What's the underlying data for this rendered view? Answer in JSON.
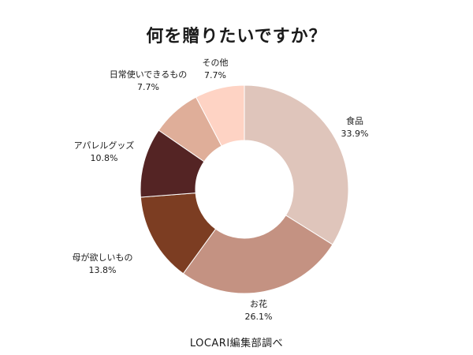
{
  "chart_data": {
    "type": "pie",
    "title": "何を贈りたいですか？",
    "source": "LOCARI編集部調べ",
    "slices": [
      {
        "label": "食品",
        "value": 33.9,
        "display": "33.9%",
        "color": "#dfc5bb"
      },
      {
        "label": "お花",
        "value": 26.1,
        "display": "26.1%",
        "color": "#c49282"
      },
      {
        "label": "母が欲しいもの",
        "value": 13.8,
        "display": "13.8%",
        "color": "#7c3d22"
      },
      {
        "label": "アパレルグッズ",
        "value": 10.8,
        "display": "10.8%",
        "color": "#542424"
      },
      {
        "label": "日常使いできるもの",
        "value": 7.7,
        "display": "7.7%",
        "color": "#dfae99"
      },
      {
        "label": "その他",
        "value": 7.7,
        "display": "7.7%",
        "color": "#fed3c4"
      }
    ],
    "donut": true,
    "start_angle": "top",
    "direction": "clockwise"
  }
}
